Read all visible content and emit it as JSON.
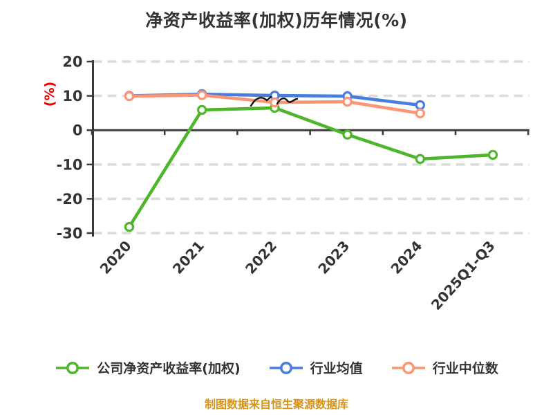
{
  "title": "净资产收益率(加权)历年情况(%)",
  "y_axis_label": "(%)",
  "caption": "制图数据来自恒生聚源数据库",
  "accent_colors": {
    "company_green": "#4FB62B",
    "industry_mean_blue": "#4A7EDE",
    "industry_median_salmon": "#FA9673",
    "caption_gold": "#D6941C",
    "ylabel_red": "#F00000",
    "text_dark": "#333333",
    "gridline_gray": "#DCDCDC",
    "axis_dark": "#3A3A3A"
  },
  "chart_data": {
    "type": "line",
    "title": "净资产收益率(加权)历年情况(%)",
    "xlabel": "",
    "ylabel": "(%)",
    "categories": [
      "2020",
      "2021",
      "2022",
      "2023",
      "2024",
      "2025Q1-Q3"
    ],
    "series": [
      {
        "name": "公司净资产收益率(加权)",
        "color": "#4FB62B",
        "values": [
          -28.2,
          5.9,
          6.5,
          -1.3,
          -8.4,
          -7.2
        ]
      },
      {
        "name": "行业均值",
        "color": "#4A7EDE",
        "values": [
          10.0,
          10.5,
          10.1,
          9.9,
          7.3,
          null
        ]
      },
      {
        "name": "行业中位数",
        "color": "#FA9673",
        "values": [
          9.9,
          10.2,
          8.1,
          8.3,
          4.9,
          null
        ]
      }
    ],
    "ylim": [
      -30,
      20
    ],
    "yticks": [
      20,
      10,
      0,
      -10,
      -20,
      -30
    ],
    "grid": "horizontal dashed",
    "marker": "circle white-filled",
    "legend_position": "bottom",
    "x_tick_label_rotation_deg": -48,
    "annotation_note": "small black scribble mark above green line near 2022"
  }
}
